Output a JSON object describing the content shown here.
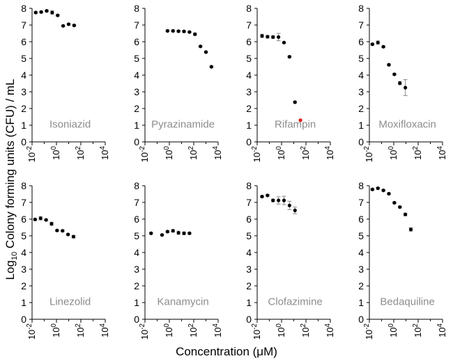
{
  "figure": {
    "ylabel_prefix": "Log",
    "ylabel_sub": "10",
    "ylabel_rest": " Colony forming units (CFU) / mL",
    "xlabel_prefix": "Concentration (",
    "xlabel_mu": "μ",
    "xlabel_suffix": "M)"
  },
  "chart_data": [
    {
      "type": "scatter",
      "title": "Isoniazid",
      "xlabel": "Concentration (μM)",
      "ylabel": "Log10 Colony forming units (CFU) / mL",
      "xscale": "log10",
      "xlim_log10": [
        -2,
        4
      ],
      "ylim": [
        0,
        8
      ],
      "x_ticks": [
        "10-2",
        "100",
        "102",
        "104"
      ],
      "y_ticks": [
        0,
        1,
        2,
        3,
        4,
        5,
        6,
        7,
        8
      ],
      "x_log10": [
        -1.7,
        -1.25,
        -0.8,
        -0.35,
        0.1,
        0.55,
        1.0,
        1.45,
        1.9
      ],
      "y": [
        7.75,
        7.78,
        7.85,
        7.75,
        7.58,
        6.95,
        7.05,
        6.98,
        null
      ],
      "err": [
        0.05,
        0.05,
        0.06,
        0.1,
        0.05,
        0.05,
        0.05,
        0.05,
        0
      ],
      "colors": []
    },
    {
      "type": "scatter",
      "title": "Pyrazinamide",
      "xlabel": "Concentration (μM)",
      "ylabel": "Log10 Colony forming units (CFU) / mL",
      "xscale": "log10",
      "xlim_log10": [
        -2,
        4
      ],
      "ylim": [
        0,
        8
      ],
      "x_ticks": [
        "10-2",
        "100",
        "102",
        "104"
      ],
      "y_ticks": [
        0,
        1,
        2,
        3,
        4,
        5,
        6,
        7,
        8
      ],
      "x_log10": [
        -0.6,
        -0.15,
        0.3,
        0.75,
        1.2,
        1.65,
        2.1,
        2.55,
        3.0,
        3.45
      ],
      "y": [
        null,
        6.65,
        6.65,
        6.63,
        6.62,
        6.58,
        6.45,
        5.72,
        5.38,
        4.5
      ],
      "err": [
        0,
        0.05,
        0.05,
        0.05,
        0.05,
        0.05,
        0.08,
        0.05,
        0.05,
        0.05
      ],
      "colors": []
    },
    {
      "type": "scatter",
      "title": "Rifampin",
      "xlabel": "Concentration (μM)",
      "ylabel": "Log10 Colony forming units (CFU) / mL",
      "xscale": "log10",
      "xlim_log10": [
        -2,
        4
      ],
      "ylim": [
        0,
        8
      ],
      "x_ticks": [
        "10-2",
        "100",
        "102",
        "104"
      ],
      "y_ticks": [
        0,
        1,
        2,
        3,
        4,
        5,
        6,
        7,
        8
      ],
      "x_log10": [
        -1.6,
        -1.15,
        -0.7,
        -0.25,
        0.2,
        0.65,
        1.1,
        1.55
      ],
      "y": [
        6.35,
        6.3,
        6.28,
        6.28,
        5.95,
        5.1,
        2.38,
        1.3
      ],
      "err": [
        0.1,
        0.08,
        0.08,
        0.22,
        0.05,
        0.05,
        0.05,
        0.0
      ],
      "colors": [
        "#000000",
        "#000000",
        "#000000",
        "#000000",
        "#000000",
        "#000000",
        "#000000",
        "#e31a1c"
      ]
    },
    {
      "type": "scatter",
      "title": "Moxifloxacin",
      "xlabel": "Concentration (μM)",
      "ylabel": "Log10 Colony forming units (CFU) / mL",
      "xscale": "log10",
      "xlim_log10": [
        -2,
        4
      ],
      "ylim": [
        0,
        8
      ],
      "x_ticks": [
        "10-2",
        "100",
        "102",
        "104"
      ],
      "y_ticks": [
        0,
        1,
        2,
        3,
        4,
        5,
        6,
        7,
        8
      ],
      "x_log10": [
        -1.75,
        -1.3,
        -0.85,
        -0.4,
        0.05,
        0.5,
        0.95,
        1.4
      ],
      "y": [
        5.85,
        5.95,
        5.7,
        4.62,
        4.05,
        3.52,
        3.25,
        null
      ],
      "err": [
        0.05,
        0.1,
        0.05,
        0.05,
        0.05,
        0.1,
        0.48,
        0
      ],
      "colors": []
    },
    {
      "type": "scatter",
      "title": "Linezolid",
      "xlabel": "Concentration (μM)",
      "ylabel": "Log10 Colony forming units (CFU) / mL",
      "xscale": "log10",
      "xlim_log10": [
        -2,
        4
      ],
      "ylim": [
        0,
        8
      ],
      "x_ticks": [
        "10-2",
        "100",
        "102",
        "104"
      ],
      "y_ticks": [
        0,
        1,
        2,
        3,
        4,
        5,
        6,
        7,
        8
      ],
      "x_log10": [
        -1.75,
        -1.3,
        -0.85,
        -0.4,
        0.05,
        0.5,
        0.95,
        1.4,
        1.85
      ],
      "y": [
        5.98,
        6.05,
        5.95,
        5.72,
        5.32,
        5.3,
        5.08,
        4.95,
        null
      ],
      "err": [
        0.05,
        0.1,
        0.05,
        0.1,
        0.05,
        0.05,
        0.05,
        0.08,
        0
      ],
      "colors": []
    },
    {
      "type": "scatter",
      "title": "Kanamycin",
      "xlabel": "Concentration (μM)",
      "ylabel": "Log10 Colony forming units (CFU) / mL",
      "xscale": "log10",
      "xlim_log10": [
        -2,
        4
      ],
      "ylim": [
        0,
        8
      ],
      "x_ticks": [
        "10-2",
        "100",
        "102",
        "104"
      ],
      "y_ticks": [
        0,
        1,
        2,
        3,
        4,
        5,
        6,
        7,
        8
      ],
      "x_log10": [
        -1.5,
        -1.05,
        -0.6,
        -0.15,
        0.3,
        0.75,
        1.2,
        1.65
      ],
      "y": [
        5.15,
        null,
        5.05,
        5.25,
        5.3,
        5.18,
        5.15,
        5.15
      ],
      "err": [
        0.05,
        0,
        0.05,
        0.05,
        0.08,
        0.1,
        0.08,
        0.05
      ],
      "colors": []
    },
    {
      "type": "scatter",
      "title": "Clofazimine",
      "xlabel": "Concentration (μM)",
      "ylabel": "Log10 Colony forming units (CFU) / mL",
      "xscale": "log10",
      "xlim_log10": [
        -2,
        4
      ],
      "ylim": [
        0,
        8
      ],
      "x_ticks": [
        "10-2",
        "100",
        "102",
        "104"
      ],
      "y_ticks": [
        0,
        1,
        2,
        3,
        4,
        5,
        6,
        7,
        8
      ],
      "x_log10": [
        -1.6,
        -1.15,
        -0.7,
        -0.25,
        0.2,
        0.65,
        1.1
      ],
      "y": [
        7.35,
        7.42,
        7.12,
        7.12,
        7.12,
        6.82,
        6.52
      ],
      "err": [
        0.05,
        0.05,
        0.08,
        0.22,
        0.25,
        0.25,
        0.2
      ],
      "colors": []
    },
    {
      "type": "scatter",
      "title": "Bedaquiline",
      "xlabel": "Concentration (μM)",
      "ylabel": "Log10 Colony forming units (CFU) / mL",
      "xscale": "log10",
      "xlim_log10": [
        -2,
        4
      ],
      "ylim": [
        0,
        8
      ],
      "x_ticks": [
        "10-2",
        "100",
        "102",
        "104"
      ],
      "y_ticks": [
        0,
        1,
        2,
        3,
        4,
        5,
        6,
        7,
        8
      ],
      "x_log10": [
        -1.75,
        -1.3,
        -0.85,
        -0.4,
        0.05,
        0.5,
        0.95,
        1.4
      ],
      "y": [
        7.78,
        7.85,
        7.72,
        7.52,
        6.98,
        6.72,
        6.28,
        5.38
      ],
      "err": [
        0.05,
        0.05,
        0.05,
        0.05,
        0.05,
        0.05,
        0.08,
        0.1
      ],
      "colors": []
    }
  ]
}
